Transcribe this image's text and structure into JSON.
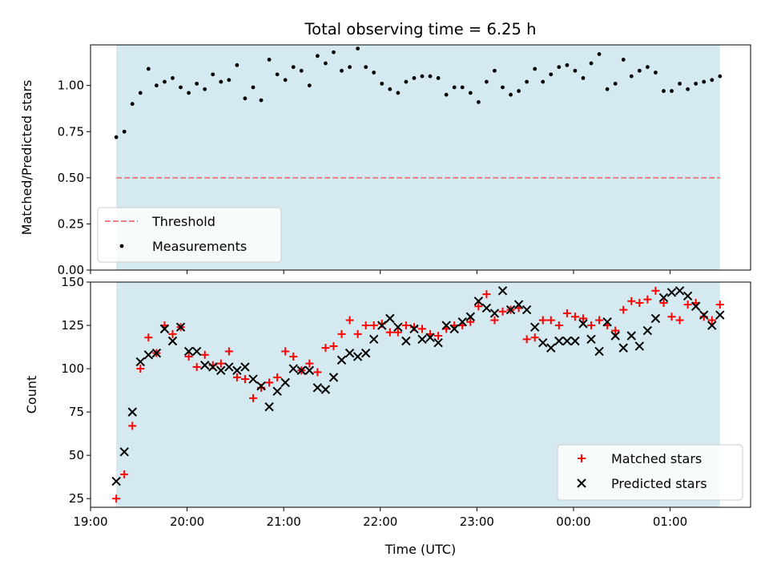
{
  "chart_data": [
    {
      "type": "scatter",
      "title": "Total observing time = 6.25 h",
      "ylabel": "Matched/Predicted stars",
      "ylim": [
        0,
        1.22
      ],
      "yticks": [
        0.0,
        0.25,
        0.5,
        0.75,
        1.0
      ],
      "ytick_labels": [
        "0.00",
        "0.25",
        "0.50",
        "0.75",
        "1.00"
      ],
      "xlim": [
        "19:00",
        "01:50"
      ],
      "shaded_interval": [
        "19:16",
        "01:31"
      ],
      "shade_color": "#d4eaf0",
      "legend_position": "lower left",
      "series": [
        {
          "name": "Threshold",
          "style": "dashed-line",
          "color": "#f08080",
          "x": [
            "19:16",
            "01:31"
          ],
          "values": [
            0.5,
            0.5
          ]
        },
        {
          "name": "Measurements",
          "style": "dot",
          "color": "#000000",
          "x": [
            "19:16",
            "19:21",
            "19:26",
            "19:31",
            "19:36",
            "19:41",
            "19:46",
            "19:51",
            "19:56",
            "20:01",
            "20:06",
            "20:11",
            "20:16",
            "20:21",
            "20:26",
            "20:31",
            "20:36",
            "20:41",
            "20:46",
            "20:51",
            "20:56",
            "21:01",
            "21:06",
            "21:11",
            "21:16",
            "21:21",
            "21:26",
            "21:31",
            "21:36",
            "21:41",
            "21:46",
            "21:51",
            "21:56",
            "22:01",
            "22:06",
            "22:11",
            "22:16",
            "22:21",
            "22:26",
            "22:31",
            "22:36",
            "22:41",
            "22:46",
            "22:51",
            "22:56",
            "23:01",
            "23:06",
            "23:11",
            "23:16",
            "23:21",
            "23:26",
            "23:31",
            "23:36",
            "23:41",
            "23:46",
            "23:51",
            "23:56",
            "00:01",
            "00:06",
            "00:11",
            "00:16",
            "00:21",
            "00:26",
            "00:31",
            "00:36",
            "00:41",
            "00:46",
            "00:51",
            "00:56",
            "01:01",
            "01:06",
            "01:11",
            "01:16",
            "01:21",
            "01:26",
            "01:31"
          ],
          "values": [
            0.72,
            0.75,
            0.9,
            0.96,
            1.09,
            1.0,
            1.02,
            1.04,
            0.99,
            0.96,
            1.01,
            0.98,
            1.06,
            1.02,
            1.03,
            1.11,
            0.93,
            0.99,
            0.92,
            1.14,
            1.06,
            1.03,
            1.1,
            1.08,
            1.0,
            1.16,
            1.12,
            1.18,
            1.08,
            1.1,
            1.2,
            1.1,
            1.07,
            1.01,
            0.98,
            0.96,
            1.02,
            1.04,
            1.05,
            1.05,
            1.04,
            0.95,
            0.99,
            0.99,
            0.96,
            0.91,
            1.02,
            1.08,
            0.99,
            0.95,
            0.97,
            1.02,
            1.09,
            1.02,
            1.06,
            1.1,
            1.11,
            1.08,
            1.04,
            1.12,
            1.17,
            0.98,
            1.01,
            1.14,
            1.05,
            1.08,
            1.1,
            1.07,
            0.97,
            0.97,
            1.01,
            0.98,
            1.01,
            1.02,
            1.03,
            1.05
          ]
        }
      ]
    },
    {
      "type": "scatter",
      "xlabel": "Time (UTC)",
      "ylabel": "Count",
      "ylim": [
        20,
        150
      ],
      "yticks": [
        25,
        50,
        75,
        100,
        125,
        150
      ],
      "ytick_labels": [
        "25",
        "50",
        "75",
        "100",
        "125",
        "150"
      ],
      "xticks": [
        "19:00",
        "20:00",
        "21:00",
        "22:00",
        "23:00",
        "00:00",
        "01:00"
      ],
      "xtick_labels": [
        "19:00",
        "20:00",
        "21:00",
        "22:00",
        "23:00",
        "00:00",
        "01:00"
      ],
      "legend_position": "lower right",
      "series": [
        {
          "name": "Matched stars",
          "style": "plus",
          "color": "#ff0000",
          "x": [
            "19:16",
            "19:21",
            "19:26",
            "19:31",
            "19:36",
            "19:41",
            "19:46",
            "19:51",
            "19:56",
            "20:01",
            "20:06",
            "20:11",
            "20:16",
            "20:21",
            "20:26",
            "20:31",
            "20:36",
            "20:41",
            "20:46",
            "20:51",
            "20:56",
            "21:01",
            "21:06",
            "21:11",
            "21:16",
            "21:21",
            "21:26",
            "21:31",
            "21:36",
            "21:41",
            "21:46",
            "21:51",
            "21:56",
            "22:01",
            "22:06",
            "22:11",
            "22:16",
            "22:21",
            "22:26",
            "22:31",
            "22:36",
            "22:41",
            "22:46",
            "22:51",
            "22:56",
            "23:01",
            "23:06",
            "23:11",
            "23:16",
            "23:21",
            "23:26",
            "23:31",
            "23:36",
            "23:41",
            "23:46",
            "23:51",
            "23:56",
            "00:01",
            "00:06",
            "00:11",
            "00:16",
            "00:21",
            "00:26",
            "00:31",
            "00:36",
            "00:41",
            "00:46",
            "00:51",
            "00:56",
            "01:01",
            "01:06",
            "01:11",
            "01:16",
            "01:21",
            "01:26",
            "01:31"
          ],
          "values": [
            25,
            39,
            67,
            100,
            118,
            109,
            125,
            120,
            124,
            107,
            101,
            108,
            102,
            103,
            110,
            95,
            94,
            83,
            89,
            92,
            95,
            110,
            107,
            99,
            103,
            98,
            112,
            113,
            120,
            128,
            120,
            125,
            125,
            126,
            121,
            121,
            125,
            124,
            123,
            120,
            119,
            123,
            125,
            125,
            127,
            136,
            143,
            128,
            133,
            134,
            135,
            117,
            118,
            128,
            128,
            125,
            132,
            130,
            129,
            125,
            128,
            125,
            122,
            134,
            139,
            138,
            140,
            145,
            138,
            130,
            128,
            137,
            138,
            130,
            128,
            137
          ]
        },
        {
          "name": "Predicted stars",
          "style": "x",
          "color": "#000000",
          "x": [
            "19:16",
            "19:21",
            "19:26",
            "19:31",
            "19:36",
            "19:41",
            "19:46",
            "19:51",
            "19:56",
            "20:01",
            "20:06",
            "20:11",
            "20:16",
            "20:21",
            "20:26",
            "20:31",
            "20:36",
            "20:41",
            "20:46",
            "20:51",
            "20:56",
            "21:01",
            "21:06",
            "21:11",
            "21:16",
            "21:21",
            "21:26",
            "21:31",
            "21:36",
            "21:41",
            "21:46",
            "21:51",
            "21:56",
            "22:01",
            "22:06",
            "22:11",
            "22:16",
            "22:21",
            "22:26",
            "22:31",
            "22:36",
            "22:41",
            "22:46",
            "22:51",
            "22:56",
            "23:01",
            "23:06",
            "23:11",
            "23:16",
            "23:21",
            "23:26",
            "23:31",
            "23:36",
            "23:41",
            "23:46",
            "23:51",
            "23:56",
            "00:01",
            "00:06",
            "00:11",
            "00:16",
            "00:21",
            "00:26",
            "00:31",
            "00:36",
            "00:41",
            "00:46",
            "00:51",
            "00:56",
            "01:01",
            "01:06",
            "01:11",
            "01:16",
            "01:21",
            "01:26",
            "01:31"
          ],
          "values": [
            35,
            52,
            75,
            104,
            108,
            109,
            123,
            116,
            124,
            110,
            110,
            102,
            101,
            99,
            101,
            99,
            101,
            94,
            90,
            78,
            87,
            92,
            100,
            99,
            99,
            89,
            88,
            95,
            105,
            109,
            107,
            109,
            117,
            125,
            129,
            124,
            116,
            123,
            117,
            118,
            115,
            125,
            123,
            127,
            130,
            139,
            135,
            132,
            145,
            134,
            137,
            134,
            124,
            115,
            112,
            116,
            116,
            116,
            126,
            117,
            110,
            127,
            119,
            112,
            119,
            113,
            122,
            129,
            141,
            144,
            145,
            142,
            136,
            131,
            125,
            131
          ]
        }
      ]
    }
  ]
}
